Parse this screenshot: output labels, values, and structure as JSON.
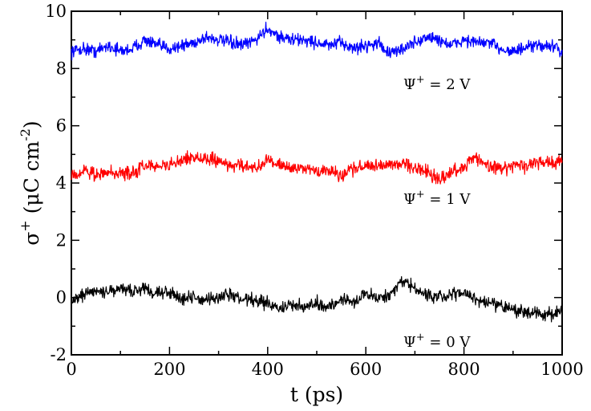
{
  "chart_data": {
    "type": "line",
    "title": "",
    "xlabel": "t (ps)",
    "ylabel": "σ⁺ (μC cm⁻²)",
    "ylabel_parts": {
      "symbol": "σ",
      "sup": "+",
      "unit_open": " (μC cm",
      "unit_exp": "-2",
      "unit_close": ")"
    },
    "xlim": [
      0,
      1000
    ],
    "ylim": [
      -2,
      10
    ],
    "x_ticks": [
      0,
      200,
      400,
      600,
      800,
      1000
    ],
    "y_ticks": [
      -2,
      0,
      2,
      4,
      6,
      8,
      10
    ],
    "x_tick_labels": [
      "0",
      "200",
      "400",
      "600",
      "800",
      "1000"
    ],
    "y_tick_labels": [
      "-2",
      "0",
      "2",
      "4",
      "6",
      "8",
      "10"
    ],
    "grid": false,
    "x": [
      0,
      25,
      50,
      75,
      100,
      125,
      150,
      175,
      200,
      225,
      250,
      275,
      300,
      325,
      350,
      375,
      400,
      425,
      450,
      475,
      500,
      525,
      550,
      575,
      600,
      625,
      650,
      675,
      700,
      725,
      750,
      775,
      800,
      825,
      850,
      875,
      900,
      925,
      950,
      975,
      1000
    ],
    "series": [
      {
        "name": "Ψ+ = 2 V",
        "color": "#0000ff",
        "values": [
          8.6,
          8.7,
          8.6,
          8.8,
          8.6,
          8.7,
          9.0,
          8.8,
          8.7,
          8.8,
          8.9,
          9.1,
          9.0,
          8.9,
          8.8,
          9.0,
          9.4,
          9.1,
          9.0,
          9.0,
          8.9,
          8.8,
          8.9,
          8.7,
          8.8,
          8.9,
          8.5,
          8.7,
          8.9,
          9.1,
          9.0,
          8.8,
          9.0,
          8.9,
          8.9,
          8.7,
          8.6,
          8.7,
          8.8,
          8.8,
          8.6
        ]
      },
      {
        "name": "Ψ+ = 1 V",
        "color": "#ff0000",
        "values": [
          4.3,
          4.4,
          4.3,
          4.4,
          4.3,
          4.4,
          4.6,
          4.6,
          4.6,
          4.8,
          4.9,
          4.8,
          4.8,
          4.6,
          4.6,
          4.5,
          4.8,
          4.6,
          4.5,
          4.5,
          4.4,
          4.4,
          4.3,
          4.5,
          4.6,
          4.6,
          4.7,
          4.7,
          4.5,
          4.4,
          4.1,
          4.4,
          4.6,
          4.9,
          4.6,
          4.5,
          4.6,
          4.6,
          4.7,
          4.7,
          4.8
        ]
      },
      {
        "name": "Ψ+ = 0 V",
        "color": "#000000",
        "values": [
          -0.1,
          0.1,
          0.2,
          0.2,
          0.3,
          0.2,
          0.3,
          0.2,
          0.2,
          0.0,
          0.0,
          -0.1,
          0.0,
          0.1,
          -0.1,
          -0.1,
          -0.2,
          -0.4,
          -0.3,
          -0.3,
          -0.2,
          -0.3,
          -0.1,
          -0.1,
          0.1,
          0.0,
          0.1,
          0.6,
          0.3,
          0.1,
          0.0,
          0.1,
          0.2,
          -0.1,
          -0.2,
          -0.3,
          -0.4,
          -0.5,
          -0.6,
          -0.6,
          -0.5
        ]
      }
    ],
    "annotations": [
      {
        "symbol": "Ψ",
        "sup": "+",
        "text": " = 2 V",
        "series": 0
      },
      {
        "symbol": "Ψ",
        "sup": "+",
        "text": " = 1 V",
        "series": 1
      },
      {
        "symbol": "Ψ",
        "sup": "+",
        "text": " = 0 V",
        "series": 2
      }
    ]
  }
}
